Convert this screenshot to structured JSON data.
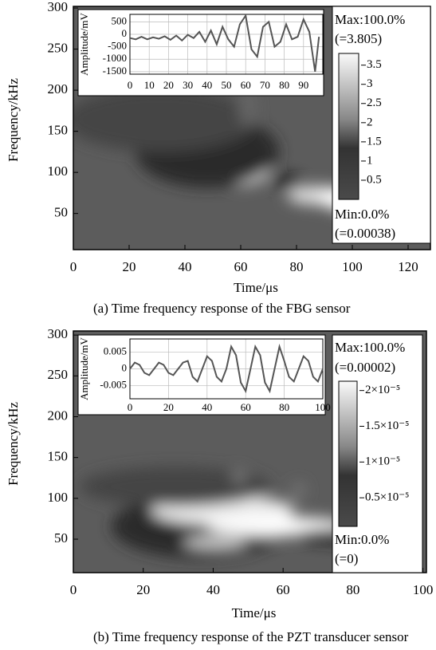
{
  "chart_data": [
    {
      "type": "heatmap",
      "caption": "(a) Time frequency response of the FBG sensor",
      "x_label": "Time/μs",
      "y_label": "Frequency/kHz",
      "xlim": [
        0,
        128
      ],
      "xticks": [
        0,
        20,
        40,
        60,
        80,
        100,
        120
      ],
      "ylim": [
        6,
        302
      ],
      "yticks": [
        50,
        100,
        150,
        200,
        250,
        300
      ],
      "colorbar": {
        "clim": [
          0.00038,
          3.805
        ],
        "ticks": [
          0.5,
          1.0,
          1.5,
          2.0,
          2.5,
          3.0,
          3.5
        ],
        "max_label": "Max:100.0%",
        "max_value_label": "(=3.805)",
        "min_label": "Min:0.0%",
        "min_value_label": "(=0.00038)"
      },
      "inset": {
        "type": "line",
        "y_label": "Amplitude/mV",
        "color": "#555555",
        "grid": true,
        "xlim": [
          0,
          100
        ],
        "ylim": [
          -1600,
          800
        ],
        "xticks": [
          0,
          10,
          20,
          30,
          40,
          50,
          60,
          70,
          80,
          90
        ],
        "yticks": [
          -1500,
          -1000,
          -500,
          0,
          500
        ],
        "x": [
          0,
          3,
          6,
          9,
          12,
          15,
          18,
          21,
          24,
          27,
          30,
          33,
          36,
          39,
          42,
          45,
          48,
          51,
          54,
          57,
          60,
          63,
          66,
          69,
          72,
          75,
          78,
          81,
          84,
          87,
          90,
          93,
          96,
          98
        ],
        "values": [
          -150,
          -200,
          -100,
          -200,
          -120,
          -180,
          -80,
          -220,
          -50,
          -250,
          -20,
          -150,
          100,
          -300,
          150,
          -400,
          300,
          -200,
          -500,
          400,
          750,
          -600,
          -900,
          300,
          500,
          -500,
          -300,
          400,
          -200,
          -100,
          600,
          100,
          -1500,
          -100
        ]
      }
    },
    {
      "type": "heatmap",
      "caption": "(b) Time frequency response of the PZT transducer sensor",
      "x_label": "Time/μs",
      "y_label": "Frequency/kHz",
      "xlim": [
        0,
        101
      ],
      "xticks": [
        0,
        20,
        40,
        60,
        80,
        100
      ],
      "ylim": [
        9,
        305
      ],
      "yticks": [
        50,
        100,
        150,
        200,
        250,
        300
      ],
      "colorbar": {
        "clim": [
          1e-06,
          2.13e-05
        ],
        "ticks": [
          {
            "value": 5e-06,
            "label": "0.5×10⁻⁵"
          },
          {
            "value": 1e-05,
            "label": "1×10⁻⁵"
          },
          {
            "value": 1.5e-05,
            "label": "1.5×10⁻⁵"
          },
          {
            "value": 2e-05,
            "label": "2×10⁻⁵"
          }
        ],
        "max_label": "Max:100.0%",
        "max_value_label": "(=0.00002)",
        "min_label": "Min:0.0%",
        "min_value_label": "(=0)"
      },
      "inset": {
        "type": "line",
        "y_label": "Amplitude/mV",
        "color": "#555555",
        "grid": true,
        "xlim": [
          0,
          100
        ],
        "ylim": [
          -0.009,
          0.009
        ],
        "xticks": [
          0,
          20,
          40,
          60,
          80,
          100
        ],
        "yticks": [
          -0.005,
          0,
          0.005
        ],
        "x": [
          0,
          2.5,
          5,
          7.5,
          10,
          12.5,
          15,
          17.5,
          20,
          22.5,
          25,
          27.5,
          30,
          32.5,
          35,
          37.5,
          40,
          42.5,
          45,
          47.5,
          50,
          52.5,
          55,
          57.5,
          60,
          62.5,
          65,
          67.5,
          70,
          72.5,
          75,
          77.5,
          80,
          82.5,
          85,
          87.5,
          90,
          92.5,
          95,
          97.5,
          100
        ],
        "values": [
          0,
          0.0019,
          0.0012,
          -0.0012,
          -0.0019,
          0,
          0.0019,
          0.0012,
          -0.0012,
          -0.0019,
          0,
          0.0019,
          0.0024,
          -0.0024,
          -0.0038,
          0,
          0.0038,
          0.0024,
          -0.0024,
          -0.0038,
          0,
          0.0067,
          0.0041,
          -0.0041,
          -0.0067,
          0,
          0.0067,
          0.0041,
          -0.0041,
          -0.0067,
          0,
          0.0067,
          0.0024,
          -0.0024,
          -0.0038,
          0,
          0.0038,
          0.0024,
          -0.0024,
          -0.0038,
          0
        ]
      }
    }
  ]
}
